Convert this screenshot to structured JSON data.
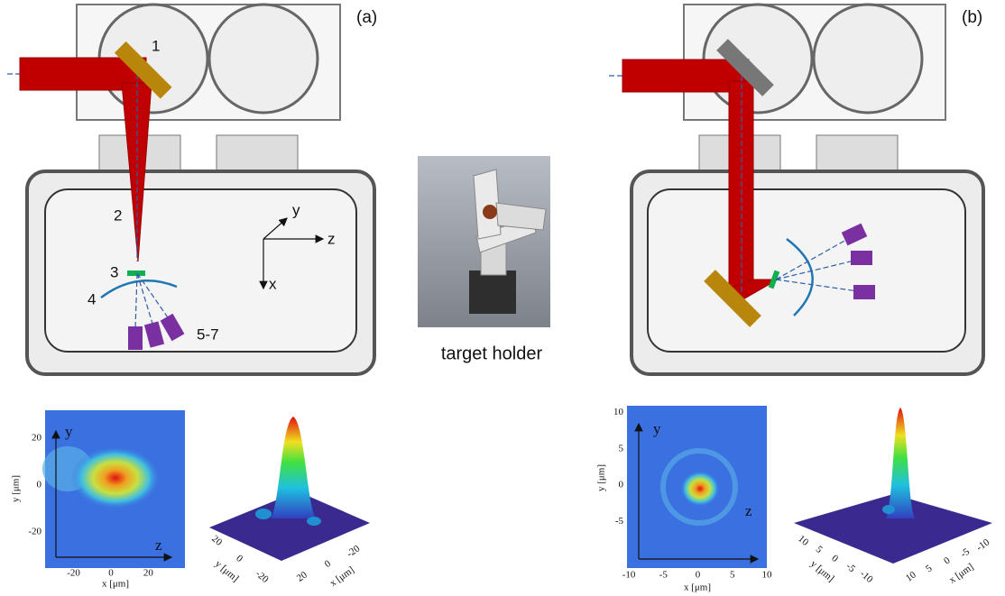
{
  "panel_a": {
    "label": "(a)",
    "markers": [
      "1",
      "2",
      "3",
      "4",
      "5-7"
    ],
    "axes": {
      "y": "y",
      "z": "z",
      "x": "x"
    }
  },
  "panel_b": {
    "label": "(b)"
  },
  "target_holder": {
    "caption": "target holder"
  },
  "profiles": {
    "a": {
      "map": {
        "x_label": "x [μm]",
        "y_label": "y [μm]",
        "x_ticks": [
          -20,
          0,
          20
        ],
        "y_ticks": [
          20,
          0,
          -20
        ],
        "axis_y": "y",
        "axis_z": "z"
      },
      "surface": {
        "y_ticks": [
          20,
          0,
          -20
        ],
        "y_label": "y [μm]",
        "x_ticks": [
          20,
          0,
          -20
        ],
        "x_label": "x [μm]"
      }
    },
    "b": {
      "map": {
        "x_label": "x [μm]",
        "y_label": "y [μm]",
        "x_ticks": [
          -10,
          -5,
          0,
          5,
          10
        ],
        "y_ticks": [
          10,
          5,
          0,
          -5
        ],
        "axis_y": "y",
        "axis_z": "z"
      },
      "surface": {
        "y_ticks": [
          10,
          5,
          0,
          -5,
          -10
        ],
        "y_label": "y [μm]",
        "x_ticks": [
          10,
          5,
          0,
          -5,
          -10
        ],
        "x_label": "x [μm]"
      }
    }
  }
}
